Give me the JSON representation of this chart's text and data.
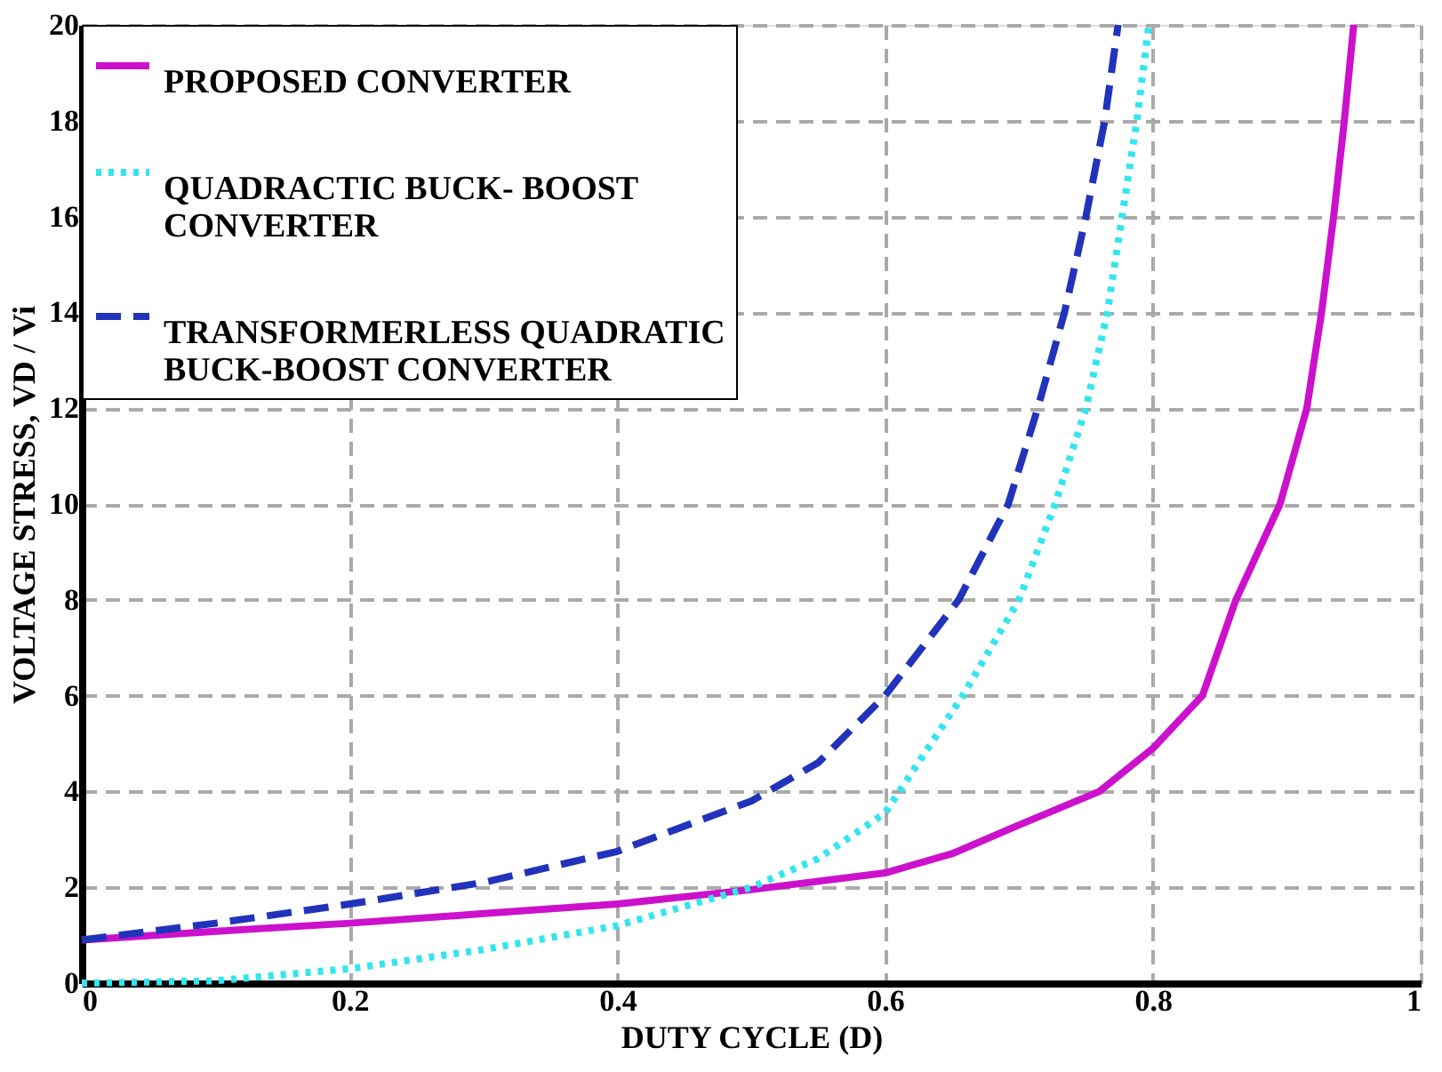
{
  "chart_data": {
    "type": "line",
    "xlabel": "DUTY CYCLE (D)",
    "ylabel": "VOLTAGE STRESS, VD / Vi",
    "xlim": [
      0,
      1
    ],
    "xticks": [
      0,
      0.2,
      0.4,
      0.6,
      0.8,
      1
    ],
    "ylim": [
      0,
      20
    ],
    "yticks": [
      0,
      2,
      4,
      6,
      8,
      10,
      12,
      14,
      16,
      18,
      20
    ],
    "grid": true,
    "legend": "top left",
    "series": [
      {
        "name": "PROPOSED CONVERTER",
        "color": "#cc11cc",
        "line_style": "solid",
        "x": [
          0,
          0.1,
          0.2,
          0.3,
          0.4,
          0.5,
          0.6,
          0.65,
          0.7,
          0.76,
          0.8,
          0.837,
          0.862,
          0.895,
          0.915,
          0.926,
          0.935,
          0.943,
          0.95
        ],
        "values": [
          0.9,
          1.08,
          1.25,
          1.45,
          1.65,
          1.95,
          2.3,
          2.7,
          3.3,
          4.0,
          4.9,
          6.0,
          8,
          10,
          12,
          14,
          16,
          18,
          20
        ]
      },
      {
        "name": "QUADRACTIC BUCK- BOOST CONVERTER",
        "color": "#33e5ee",
        "line_style": "dotted",
        "x": [
          0,
          0.1,
          0.2,
          0.3,
          0.4,
          0.5,
          0.55,
          0.6,
          0.658,
          0.7,
          0.727,
          0.75,
          0.766,
          0.777,
          0.788,
          0.797
        ],
        "values": [
          0,
          0.05,
          0.3,
          0.7,
          1.2,
          2.0,
          2.6,
          3.55,
          6,
          8,
          10,
          12,
          14,
          16,
          18,
          20
        ]
      },
      {
        "name": "TRANSFORMERLESS QUADRATIC BUCK-BOOST CONVERTER",
        "color": "#2233bb",
        "line_style": "dashed",
        "x": [
          0,
          0.1,
          0.2,
          0.3,
          0.4,
          0.5,
          0.55,
          0.6,
          0.655,
          0.692,
          0.714,
          0.734,
          0.75,
          0.764,
          0.774
        ],
        "values": [
          0.9,
          1.25,
          1.65,
          2.1,
          2.75,
          3.8,
          4.6,
          6.0,
          8,
          10,
          12,
          14,
          16,
          18,
          20
        ]
      }
    ]
  }
}
